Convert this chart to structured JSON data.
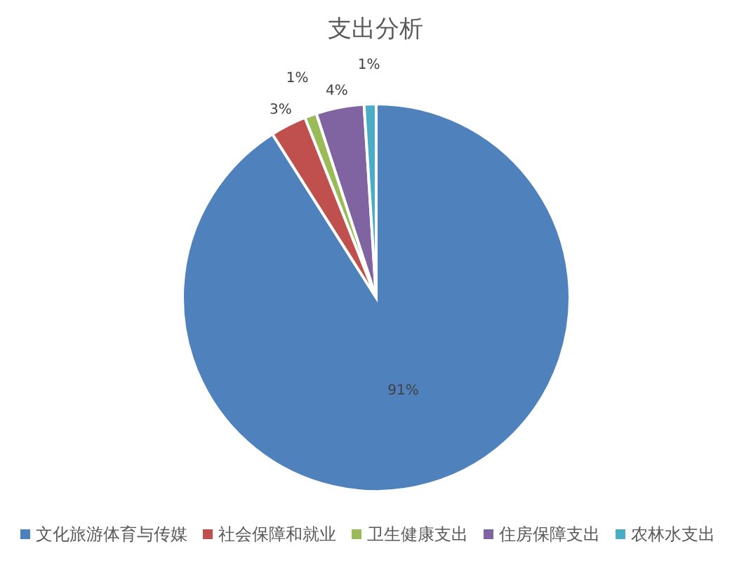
{
  "chart_data": {
    "type": "pie",
    "title": "支出分析",
    "categories": [
      "文化旅游体育与传媒",
      "社会保障和就业",
      "卫生健康支出",
      "住房保障支出",
      "农林水支出"
    ],
    "values": [
      91,
      3,
      1,
      4,
      1
    ],
    "colors": [
      "#4f81bd",
      "#c0504d",
      "#9bbb59",
      "#8064a2",
      "#4bacc6"
    ],
    "value_labels": [
      "91%",
      "3%",
      "1%",
      "4%",
      "1%"
    ],
    "legend": "bottom"
  }
}
